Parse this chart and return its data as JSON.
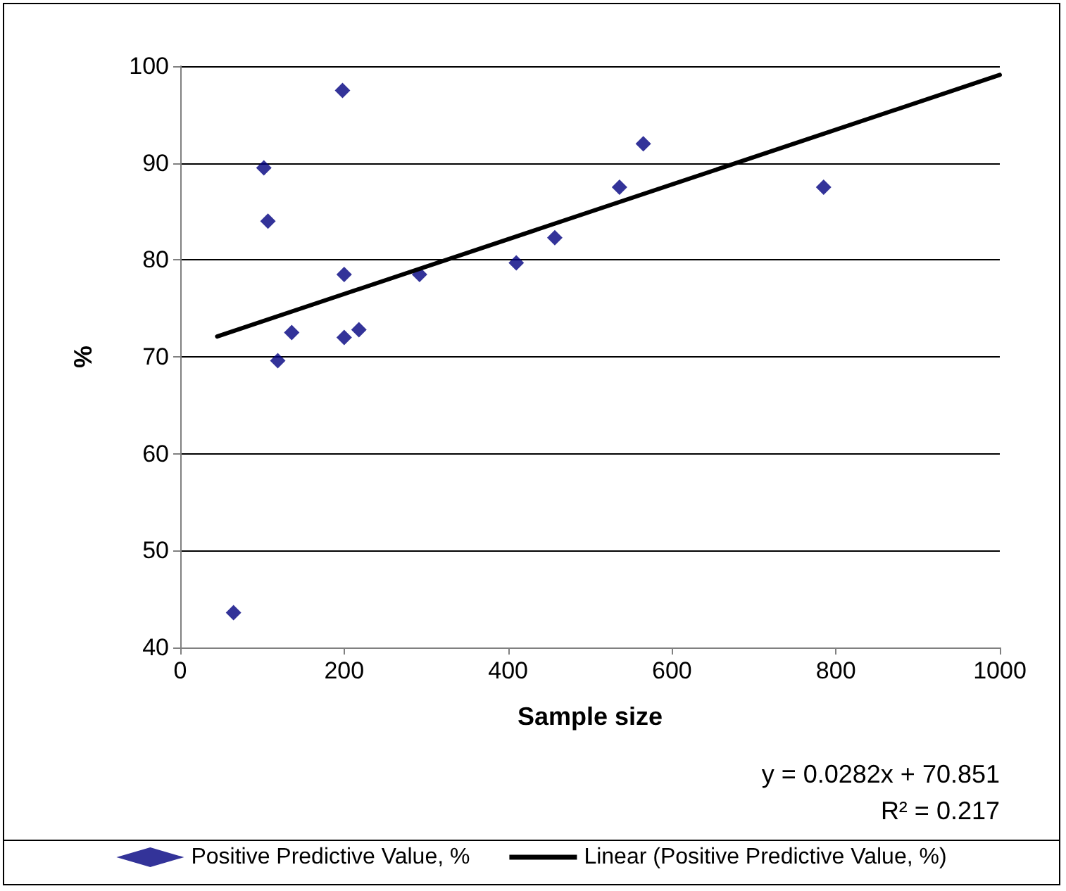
{
  "chart_data": {
    "type": "scatter",
    "xlabel": "Sample size",
    "ylabel": "%",
    "xlim": [
      0,
      1000
    ],
    "xticks": [
      0,
      200,
      400,
      600,
      800,
      {
        "value": 1000,
        "label": "1000"
      }
    ],
    "ylim": [
      40,
      100
    ],
    "yticks": [
      40,
      50,
      60,
      70,
      80,
      90,
      100
    ],
    "grid": "y",
    "legend": "bottom",
    "marker": "diamond",
    "annotations": [
      "y = 0.0282x + 70.851",
      "R² = 0.217"
    ],
    "series": [
      {
        "name": "Positive Predictive Value, %",
        "color": "#000080",
        "x": [
          65,
          102,
          107,
          119,
          136,
          198,
          200,
          200,
          218,
          292,
          410,
          457,
          536,
          565,
          785
        ],
        "values": [
          43.6,
          89.5,
          84,
          69.6,
          72.5,
          97.5,
          78.5,
          72,
          72.8,
          78.5,
          79.7,
          82.3,
          87.5,
          92,
          87.5
        ]
      },
      {
        "name": "Linear (Positive Predictive Value, %)",
        "color": "#000000",
        "type": "line",
        "marker": "none",
        "line_style": "solid",
        "x": [
          45,
          1000
        ],
        "values": [
          72.1,
          99.1
        ]
      }
    ]
  }
}
